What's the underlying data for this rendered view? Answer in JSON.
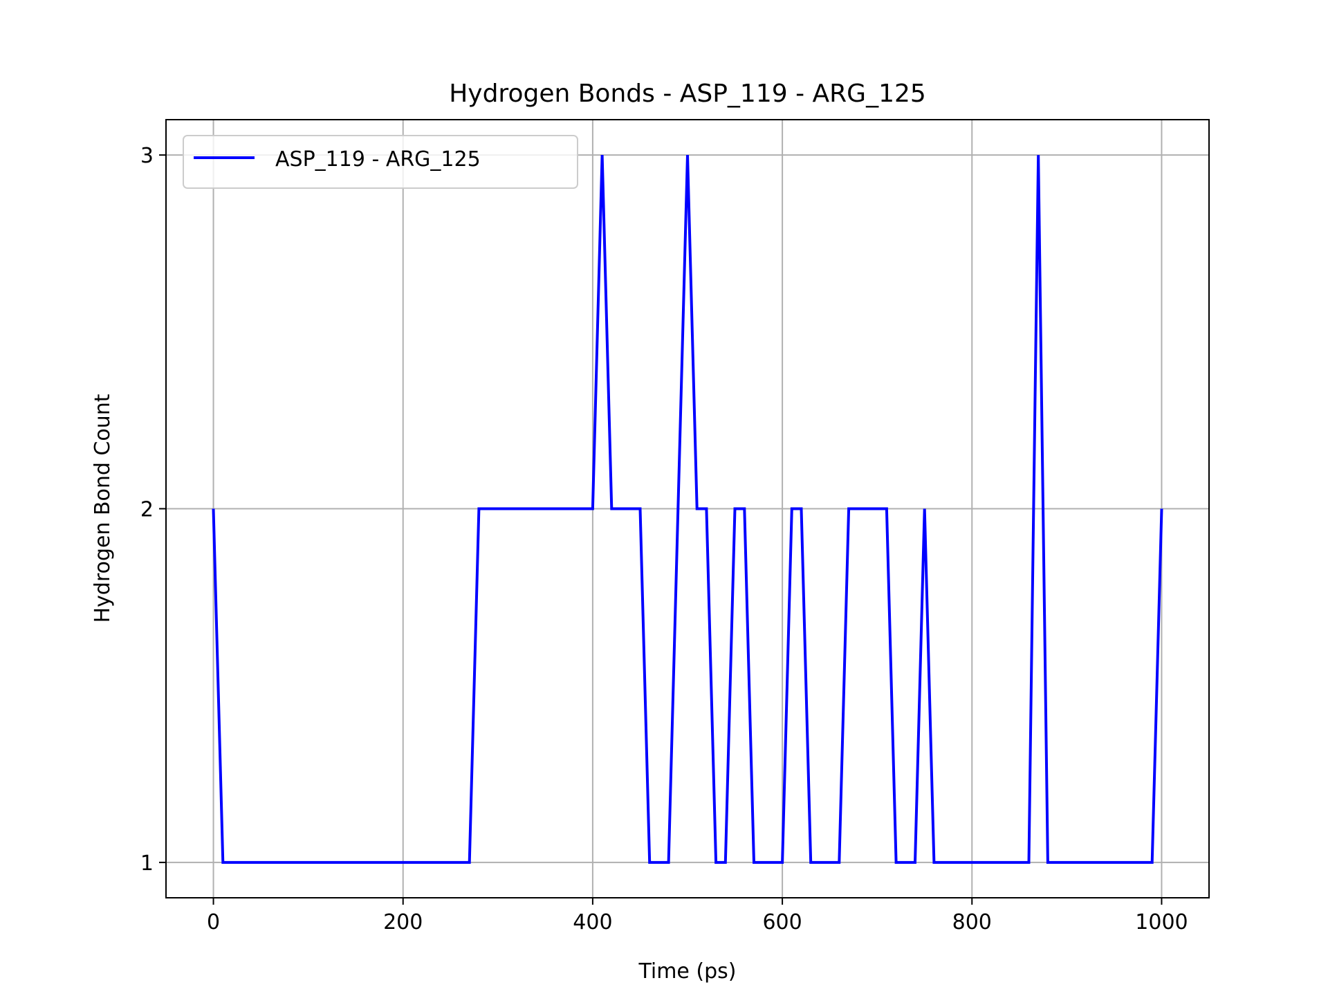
{
  "chart_data": {
    "type": "line",
    "title": "Hydrogen Bonds - ASP_119 - ARG_125",
    "xlabel": "Time (ps)",
    "ylabel": "Hydrogen Bond Count",
    "xlim": [
      -50,
      1050
    ],
    "ylim": [
      0.9,
      3.1
    ],
    "xticks": [
      0,
      200,
      400,
      600,
      800,
      1000
    ],
    "yticks": [
      1,
      2,
      3
    ],
    "grid": true,
    "legend_position": "top-left",
    "colors": {
      "series": "#0000ff",
      "grid": "#b0b0b0",
      "axis": "#000000"
    },
    "series": [
      {
        "name": "ASP_119 - ARG_125",
        "x": [
          0,
          10,
          20,
          30,
          40,
          50,
          60,
          70,
          80,
          90,
          100,
          110,
          120,
          130,
          140,
          150,
          160,
          170,
          180,
          190,
          200,
          210,
          220,
          230,
          240,
          250,
          260,
          270,
          280,
          290,
          300,
          310,
          320,
          330,
          340,
          350,
          360,
          370,
          380,
          390,
          400,
          410,
          420,
          430,
          440,
          450,
          460,
          470,
          480,
          490,
          500,
          510,
          520,
          530,
          540,
          550,
          560,
          570,
          580,
          590,
          600,
          610,
          620,
          630,
          640,
          650,
          660,
          670,
          680,
          690,
          700,
          710,
          720,
          730,
          740,
          750,
          760,
          770,
          780,
          790,
          800,
          810,
          820,
          830,
          840,
          850,
          860,
          870,
          880,
          890,
          900,
          910,
          920,
          930,
          940,
          950,
          960,
          970,
          980,
          990,
          1000
        ],
        "y": [
          2,
          1,
          1,
          1,
          1,
          1,
          1,
          1,
          1,
          1,
          1,
          1,
          1,
          1,
          1,
          1,
          1,
          1,
          1,
          1,
          1,
          1,
          1,
          1,
          1,
          1,
          1,
          1,
          2,
          2,
          2,
          2,
          2,
          2,
          2,
          2,
          2,
          2,
          2,
          2,
          2,
          3,
          2,
          2,
          2,
          2,
          1,
          1,
          1,
          2,
          3,
          2,
          2,
          1,
          1,
          2,
          2,
          1,
          1,
          1,
          1,
          2,
          2,
          1,
          1,
          1,
          1,
          2,
          2,
          2,
          2,
          2,
          1,
          1,
          1,
          2,
          1,
          1,
          1,
          1,
          1,
          1,
          1,
          1,
          1,
          1,
          1,
          3,
          1,
          1,
          1,
          1,
          1,
          1,
          1,
          1,
          1,
          1,
          1,
          1,
          2
        ]
      }
    ]
  }
}
